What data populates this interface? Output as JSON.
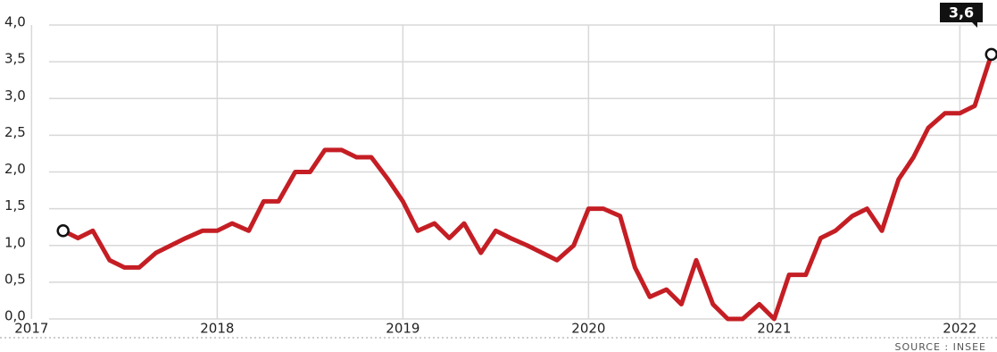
{
  "chart_data": {
    "type": "line",
    "x": [
      2017.17,
      2017.25,
      2017.33,
      2017.42,
      2017.5,
      2017.58,
      2017.67,
      2017.75,
      2017.83,
      2017.92,
      2018.0,
      2018.08,
      2018.17,
      2018.25,
      2018.33,
      2018.42,
      2018.5,
      2018.58,
      2018.67,
      2018.75,
      2018.83,
      2018.92,
      2019.0,
      2019.08,
      2019.17,
      2019.25,
      2019.33,
      2019.42,
      2019.5,
      2019.58,
      2019.67,
      2019.75,
      2019.83,
      2019.92,
      2020.0,
      2020.08,
      2020.17,
      2020.25,
      2020.33,
      2020.42,
      2020.5,
      2020.58,
      2020.67,
      2020.75,
      2020.83,
      2020.92,
      2021.0,
      2021.08,
      2021.17,
      2021.25,
      2021.33,
      2021.42,
      2021.5,
      2021.58,
      2021.67,
      2021.75,
      2021.83,
      2021.92,
      2022.0,
      2022.08,
      2022.17
    ],
    "series": [
      {
        "color": "#c41e24",
        "values": [
          1.2,
          1.1,
          1.2,
          0.8,
          0.7,
          0.7,
          0.9,
          1.0,
          1.1,
          1.2,
          1.2,
          1.3,
          1.2,
          1.6,
          1.6,
          2.0,
          2.0,
          2.3,
          2.3,
          2.2,
          2.2,
          1.9,
          1.6,
          1.2,
          1.3,
          1.1,
          1.3,
          0.9,
          1.2,
          1.1,
          1.0,
          0.9,
          0.8,
          1.0,
          1.5,
          1.5,
          1.4,
          0.7,
          0.3,
          0.4,
          0.2,
          0.8,
          0.2,
          0.0,
          0.0,
          0.2,
          0.0,
          0.6,
          0.6,
          1.1,
          1.2,
          1.4,
          1.5,
          1.2,
          1.9,
          2.2,
          2.6,
          2.8,
          2.8,
          2.9,
          3.6
        ]
      }
    ],
    "annotations": [
      {
        "x": 2022.17,
        "value": 3.6,
        "label": "3,6"
      }
    ],
    "xlim": [
      2016.83,
      2022.2
    ],
    "xticks": [
      2017,
      2018,
      2019,
      2020,
      2021,
      2022
    ],
    "ylim": [
      0,
      4
    ],
    "yticks": [
      {
        "value": 0,
        "label": "0,0"
      },
      {
        "value": 0.5,
        "label": "0,5"
      },
      {
        "value": 1,
        "label": "1,0"
      },
      {
        "value": 1.5,
        "label": "1,5"
      },
      {
        "value": 2,
        "label": "2,0"
      },
      {
        "value": 2.5,
        "label": "2,5"
      },
      {
        "value": 3,
        "label": "3,0"
      },
      {
        "value": 3.5,
        "label": "3,5"
      },
      {
        "value": 4,
        "label": "4,0"
      }
    ],
    "grid": true,
    "source": "SOURCE : INSEE"
  }
}
